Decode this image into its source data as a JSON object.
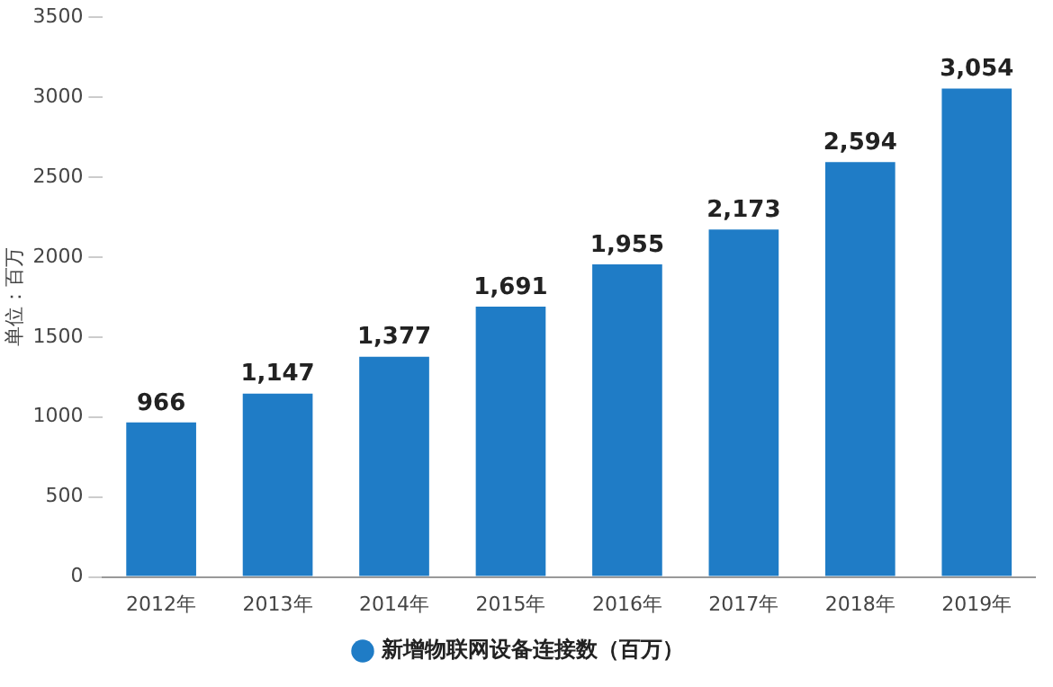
{
  "chart_data": {
    "type": "bar",
    "ylabel": "单位：百万",
    "categories": [
      "2012年",
      "2013年",
      "2014年",
      "2015年",
      "2016年",
      "2017年",
      "2018年",
      "2019年"
    ],
    "series": [
      {
        "name": "新增物联网设备连接数（百万）",
        "color": "#1f7cc6",
        "values": [
          966,
          1147,
          1377,
          1691,
          1955,
          2173,
          2594,
          3054
        ],
        "value_labels": [
          "966",
          "1,147",
          "1,377",
          "1,691",
          "1,955",
          "2,173",
          "2,594",
          "3,054"
        ]
      }
    ],
    "ylim": [
      0,
      3500
    ],
    "yticks": [
      0,
      500,
      1000,
      1500,
      2000,
      2500,
      3000,
      3500
    ],
    "grid": false,
    "legend": "bottom"
  }
}
